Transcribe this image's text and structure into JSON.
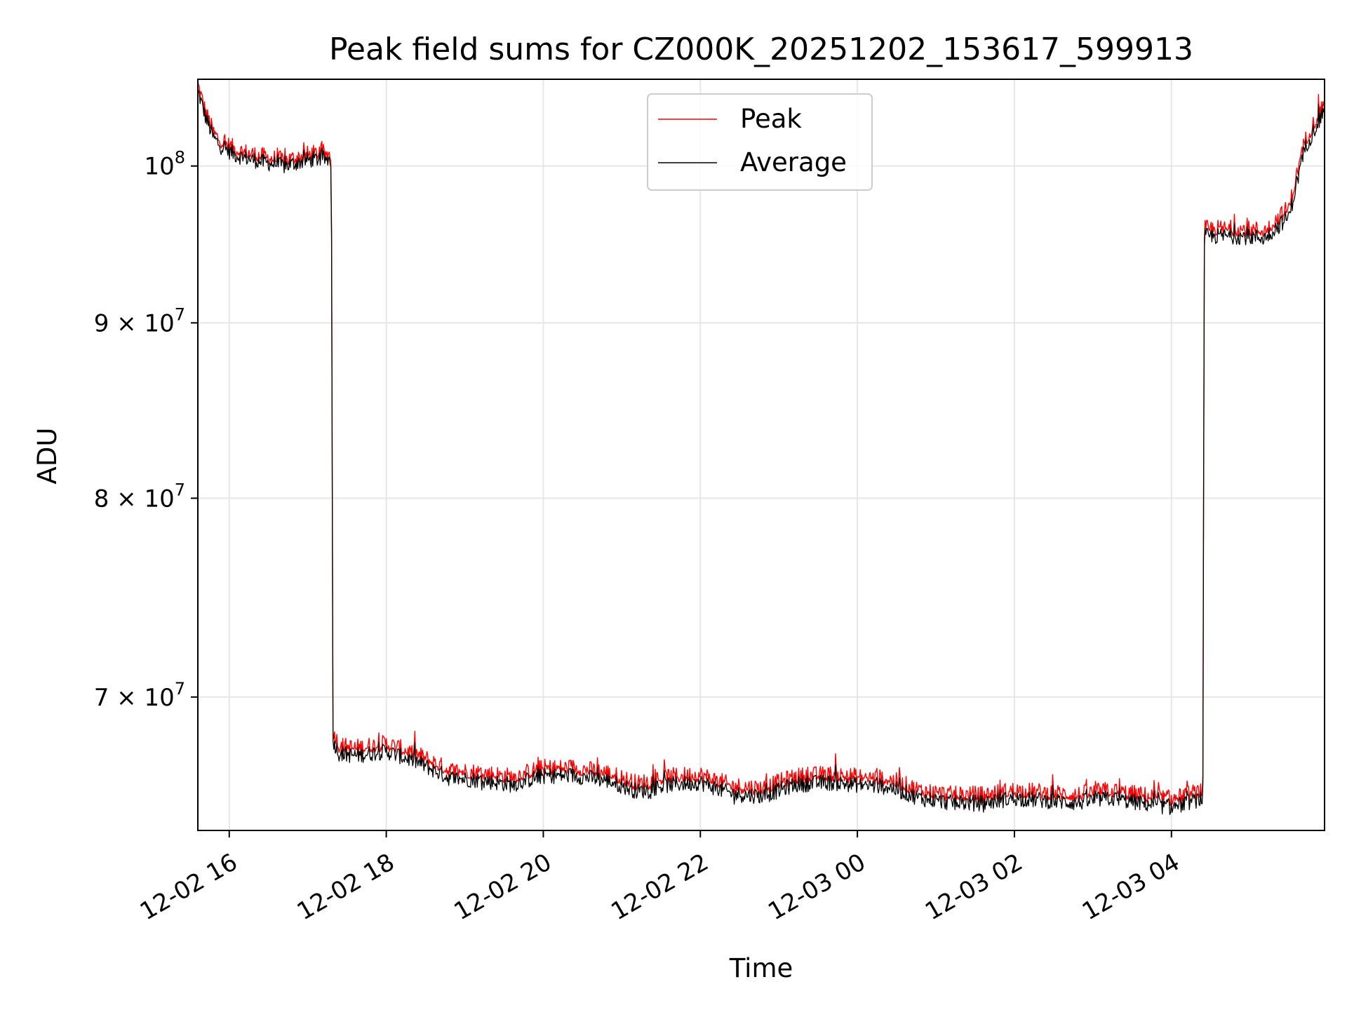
{
  "chart_data": {
    "type": "line",
    "title": "Peak field sums for CZ000K_20251202_153617_599913",
    "xlabel": "Time",
    "ylabel": "ADU",
    "yscale": "log",
    "x_units": "hours since 12-02 15:36",
    "xlim": [
      0.0,
      14.35
    ],
    "ylim": [
      64000000,
      106000000
    ],
    "grid": true,
    "legend_position": "top-center",
    "x_ticks": [
      {
        "label": "12-02 16",
        "value": 0.4
      },
      {
        "label": "12-02 18",
        "value": 2.4
      },
      {
        "label": "12-02 20",
        "value": 4.4
      },
      {
        "label": "12-02 22",
        "value": 6.4
      },
      {
        "label": "12-03 00",
        "value": 8.4
      },
      {
        "label": "12-03 02",
        "value": 10.4
      },
      {
        "label": "12-03 04",
        "value": 12.4
      }
    ],
    "y_ticks": [
      {
        "base": "7 × 10",
        "exp": "7",
        "value": 70000000
      },
      {
        "base": "8 × 10",
        "exp": "7",
        "value": 80000000
      },
      {
        "base": "9 × 10",
        "exp": "7",
        "value": 90000000
      },
      {
        "base": "10",
        "exp": "8",
        "value": 100000000
      }
    ],
    "series": [
      {
        "name": "Peak",
        "color": "#ff0000",
        "x": [
          0.0,
          0.1,
          0.2,
          0.3,
          0.5,
          0.8,
          1.1,
          1.4,
          1.6,
          1.7,
          1.72,
          1.8,
          2.0,
          2.4,
          2.8,
          3.2,
          3.6,
          4.0,
          4.4,
          4.8,
          5.2,
          5.6,
          6.0,
          6.4,
          6.8,
          7.2,
          7.6,
          8.0,
          8.4,
          8.8,
          9.2,
          9.6,
          10.0,
          10.4,
          10.8,
          11.2,
          11.6,
          12.0,
          12.4,
          12.7,
          12.8,
          12.82,
          13.2,
          13.6,
          13.9,
          14.1,
          14.35
        ],
        "values": [
          105600000,
          103600000,
          102200000,
          101600000,
          101000000,
          100600000,
          100300000,
          100700000,
          100800000,
          100700000,
          68400000,
          67700000,
          67600000,
          67800000,
          67300000,
          66600000,
          66500000,
          66300000,
          66700000,
          66700000,
          66500000,
          66000000,
          66300000,
          66400000,
          65900000,
          65800000,
          66300000,
          66400000,
          66300000,
          66200000,
          65700000,
          65500000,
          65500000,
          65700000,
          65600000,
          65500000,
          65700000,
          65500000,
          65300000,
          65600000,
          65700000,
          95800000,
          95800000,
          95700000,
          97200000,
          101600000,
          104300000
        ]
      },
      {
        "name": "Average",
        "color": "#000000",
        "x": [
          0.0,
          0.1,
          0.2,
          0.3,
          0.5,
          0.8,
          1.1,
          1.4,
          1.6,
          1.7,
          1.72,
          1.8,
          2.0,
          2.4,
          2.8,
          3.2,
          3.6,
          4.0,
          4.4,
          4.8,
          5.2,
          5.6,
          6.0,
          6.4,
          6.8,
          7.2,
          7.6,
          8.0,
          8.4,
          8.8,
          9.2,
          9.6,
          10.0,
          10.4,
          10.8,
          11.2,
          11.6,
          12.0,
          12.4,
          12.7,
          12.8,
          12.82,
          13.2,
          13.6,
          13.9,
          14.1,
          14.35
        ],
        "values": [
          105200000,
          103300000,
          101900000,
          101300000,
          100700000,
          100300000,
          100000000,
          100400000,
          100500000,
          100400000,
          68000000,
          67400000,
          67300000,
          67500000,
          67000000,
          66300000,
          66200000,
          66000000,
          66400000,
          66400000,
          66200000,
          65700000,
          66000000,
          66100000,
          65600000,
          65500000,
          66000000,
          66100000,
          66000000,
          65900000,
          65400000,
          65200000,
          65200000,
          65400000,
          65300000,
          65200000,
          65400000,
          65200000,
          65000000,
          65300000,
          65400000,
          95400000,
          95400000,
          95300000,
          96700000,
          101200000,
          103900000
        ]
      }
    ]
  }
}
